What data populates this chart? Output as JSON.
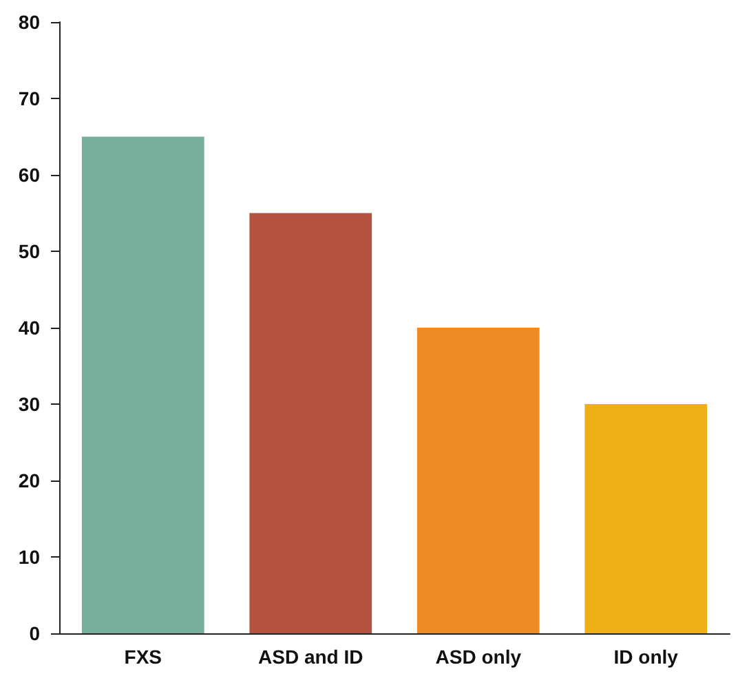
{
  "chart_data": {
    "type": "bar",
    "categories": [
      "FXS",
      "ASD and ID",
      "ASD only",
      "ID only"
    ],
    "values": [
      65,
      55,
      40,
      30
    ],
    "colors": [
      "#76ae9b",
      "#b3533f",
      "#ee8b22",
      "#efb017"
    ],
    "ylim": [
      0,
      80
    ],
    "yticks": [
      0,
      10,
      20,
      30,
      40,
      50,
      60,
      70,
      80
    ],
    "grid": false
  }
}
